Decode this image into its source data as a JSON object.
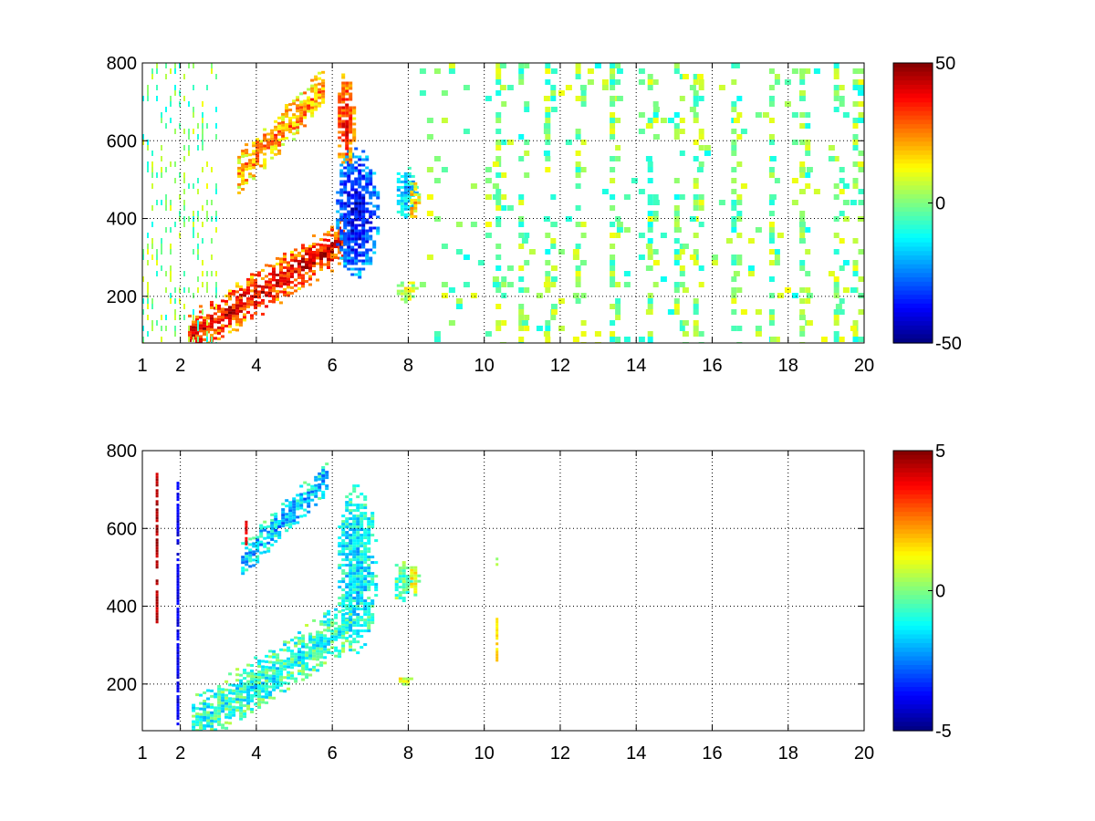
{
  "chart_data": [
    {
      "type": "heatmap",
      "xlim": [
        1,
        20
      ],
      "ylim": [
        80,
        800
      ],
      "x_ticks": [
        1,
        2,
        4,
        6,
        8,
        10,
        12,
        14,
        16,
        18,
        20
      ],
      "y_ticks": [
        200,
        400,
        600,
        800
      ],
      "grid": true,
      "grid_style": "dotted",
      "colormap": "jet",
      "colorbar": {
        "min": -50,
        "max": 50,
        "ticks": [
          50,
          0,
          -50
        ],
        "position": "right"
      },
      "features": [
        {
          "description_type": "band",
          "x_start": 2.2,
          "x_end": 6.3,
          "y_start": 100,
          "y_end": 350,
          "width": 60,
          "value": 40
        },
        {
          "description_type": "band",
          "x_start": 3.5,
          "x_end": 5.8,
          "y_start": 520,
          "y_end": 740,
          "width": 55,
          "value": 25
        },
        {
          "description_type": "blob",
          "x_center": 6.6,
          "y_center": 420,
          "x_radius": 0.6,
          "y_radius": 170,
          "value": -40
        },
        {
          "description_type": "blob",
          "x_center": 6.3,
          "y_center": 650,
          "x_radius": 0.25,
          "y_radius": 130,
          "value": 35
        },
        {
          "description_type": "blob",
          "x_center": 7.9,
          "y_center": 470,
          "x_radius": 0.3,
          "y_radius": 70,
          "value": -20
        },
        {
          "description_type": "blob",
          "x_center": 8.1,
          "y_center": 450,
          "x_radius": 0.15,
          "y_radius": 50,
          "value": 20
        },
        {
          "description_type": "blob",
          "x_center": 7.9,
          "y_center": 215,
          "x_radius": 0.3,
          "y_radius": 30,
          "value": 8
        }
      ],
      "noise_columns_x": [
        10.3,
        10.9,
        11.6,
        12.4,
        13.3,
        14.3,
        15.0,
        15.5,
        16.5,
        17.5,
        18.3,
        19.2,
        19.7
      ],
      "noise_values_range": [
        -12,
        12
      ]
    },
    {
      "type": "heatmap",
      "xlim": [
        1,
        20
      ],
      "ylim": [
        80,
        800
      ],
      "x_ticks": [
        1,
        2,
        4,
        6,
        8,
        10,
        12,
        14,
        16,
        18,
        20
      ],
      "y_ticks": [
        200,
        400,
        600,
        800
      ],
      "grid": true,
      "grid_style": "dotted",
      "colormap": "jet",
      "colorbar": {
        "min": -5,
        "max": 5,
        "ticks": [
          5,
          0,
          -5
        ],
        "position": "right"
      },
      "features": [
        {
          "description_type": "band",
          "x_start": 2.3,
          "x_end": 6.5,
          "y_start": 100,
          "y_end": 360,
          "width": 70,
          "value": -1
        },
        {
          "description_type": "band",
          "x_start": 3.6,
          "x_end": 5.9,
          "y_start": 520,
          "y_end": 740,
          "width": 45,
          "value": -2
        },
        {
          "description_type": "blob",
          "x_center": 6.6,
          "y_center": 500,
          "x_radius": 0.55,
          "y_radius": 220,
          "value": -1.5
        },
        {
          "description_type": "blob",
          "x_center": 7.8,
          "y_center": 470,
          "x_radius": 0.25,
          "y_radius": 60,
          "value": -0.5
        },
        {
          "description_type": "blob",
          "x_center": 8.1,
          "y_center": 470,
          "x_radius": 0.15,
          "y_radius": 40,
          "value": 1
        },
        {
          "description_type": "blob",
          "x_center": 7.9,
          "y_center": 212,
          "x_radius": 0.25,
          "y_radius": 12,
          "value": 1
        },
        {
          "description_type": "column",
          "x": 10.3,
          "y_start": 260,
          "y_end": 370,
          "value": 1.5
        },
        {
          "description_type": "column",
          "x": 10.3,
          "y_start": 500,
          "y_end": 525,
          "value": 0.5
        },
        {
          "description_type": "column",
          "x": 1.35,
          "y_start": 360,
          "y_end": 750,
          "value": 4.5
        },
        {
          "description_type": "column",
          "x": 1.9,
          "y_start": 100,
          "y_end": 720,
          "value": -4
        },
        {
          "description_type": "column",
          "x": 3.7,
          "y_start": 560,
          "y_end": 620,
          "value": 4
        }
      ],
      "noise_columns_x": [],
      "noise_values_range": [
        -1,
        1
      ]
    }
  ]
}
